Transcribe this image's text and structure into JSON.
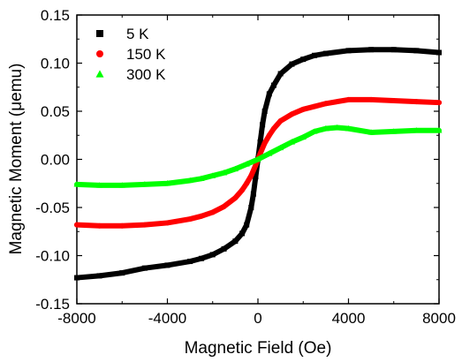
{
  "chart_data": {
    "type": "scatter",
    "xlabel": "Magnetic Field (Oe)",
    "ylabel": "Magnetic Moment (μemu)",
    "xlim": [
      -8000,
      8000
    ],
    "ylim": [
      -0.15,
      0.15
    ],
    "x_ticks": [
      -8000,
      -4000,
      0,
      4000,
      8000
    ],
    "x_tick_labels": [
      "-8000",
      "-4000",
      "0",
      "4000",
      "8000"
    ],
    "y_ticks": [
      -0.15,
      -0.1,
      -0.05,
      0.0,
      0.05,
      0.1,
      0.15
    ],
    "y_tick_labels": [
      "-0.15",
      "-0.10",
      "-0.05",
      "0.00",
      "0.05",
      "0.10",
      "0.15"
    ],
    "grid": false,
    "legend_position": "top-left",
    "series": [
      {
        "name": "5 K",
        "color": "#000000",
        "marker": "square",
        "x": [
          -8000,
          -7000,
          -6000,
          -5000,
          -4000,
          -3000,
          -2500,
          -2000,
          -1500,
          -1000,
          -700,
          -500,
          -300,
          -200,
          -100,
          0,
          100,
          200,
          300,
          500,
          700,
          1000,
          1500,
          2000,
          2500,
          3000,
          4000,
          5000,
          6000,
          7000,
          8000
        ],
        "y": [
          -0.123,
          -0.121,
          -0.118,
          -0.113,
          -0.11,
          -0.106,
          -0.103,
          -0.099,
          -0.093,
          -0.085,
          -0.077,
          -0.068,
          -0.05,
          -0.036,
          -0.018,
          0.0,
          0.018,
          0.036,
          0.05,
          0.068,
          0.077,
          0.089,
          0.099,
          0.104,
          0.108,
          0.11,
          0.113,
          0.114,
          0.114,
          0.113,
          0.111
        ]
      },
      {
        "name": "150 K",
        "color": "#ff0000",
        "marker": "circle",
        "x": [
          -8000,
          -7000,
          -6000,
          -5000,
          -4000,
          -3000,
          -2500,
          -2000,
          -1500,
          -1000,
          -700,
          -500,
          -300,
          -100,
          0,
          100,
          300,
          500,
          700,
          1000,
          1500,
          2000,
          2500,
          3000,
          4000,
          5000,
          6000,
          7000,
          8000
        ],
        "y": [
          -0.068,
          -0.069,
          -0.069,
          -0.068,
          -0.066,
          -0.062,
          -0.059,
          -0.055,
          -0.049,
          -0.04,
          -0.032,
          -0.025,
          -0.017,
          -0.006,
          0.0,
          0.006,
          0.017,
          0.025,
          0.032,
          0.04,
          0.047,
          0.052,
          0.055,
          0.058,
          0.062,
          0.062,
          0.061,
          0.06,
          0.059
        ]
      },
      {
        "name": "300 K",
        "color": "#00ff00",
        "marker": "triangle",
        "x": [
          -8000,
          -7000,
          -6000,
          -5000,
          -4000,
          -3000,
          -2500,
          -2000,
          -1500,
          -1000,
          -500,
          0,
          500,
          1000,
          1500,
          2000,
          2500,
          3000,
          3500,
          4000,
          5000,
          6000,
          7000,
          8000
        ],
        "y": [
          -0.026,
          -0.027,
          -0.027,
          -0.026,
          -0.025,
          -0.022,
          -0.02,
          -0.017,
          -0.014,
          -0.01,
          -0.005,
          0.0,
          0.006,
          0.012,
          0.018,
          0.023,
          0.029,
          0.032,
          0.033,
          0.032,
          0.028,
          0.029,
          0.03,
          0.03
        ]
      }
    ]
  }
}
